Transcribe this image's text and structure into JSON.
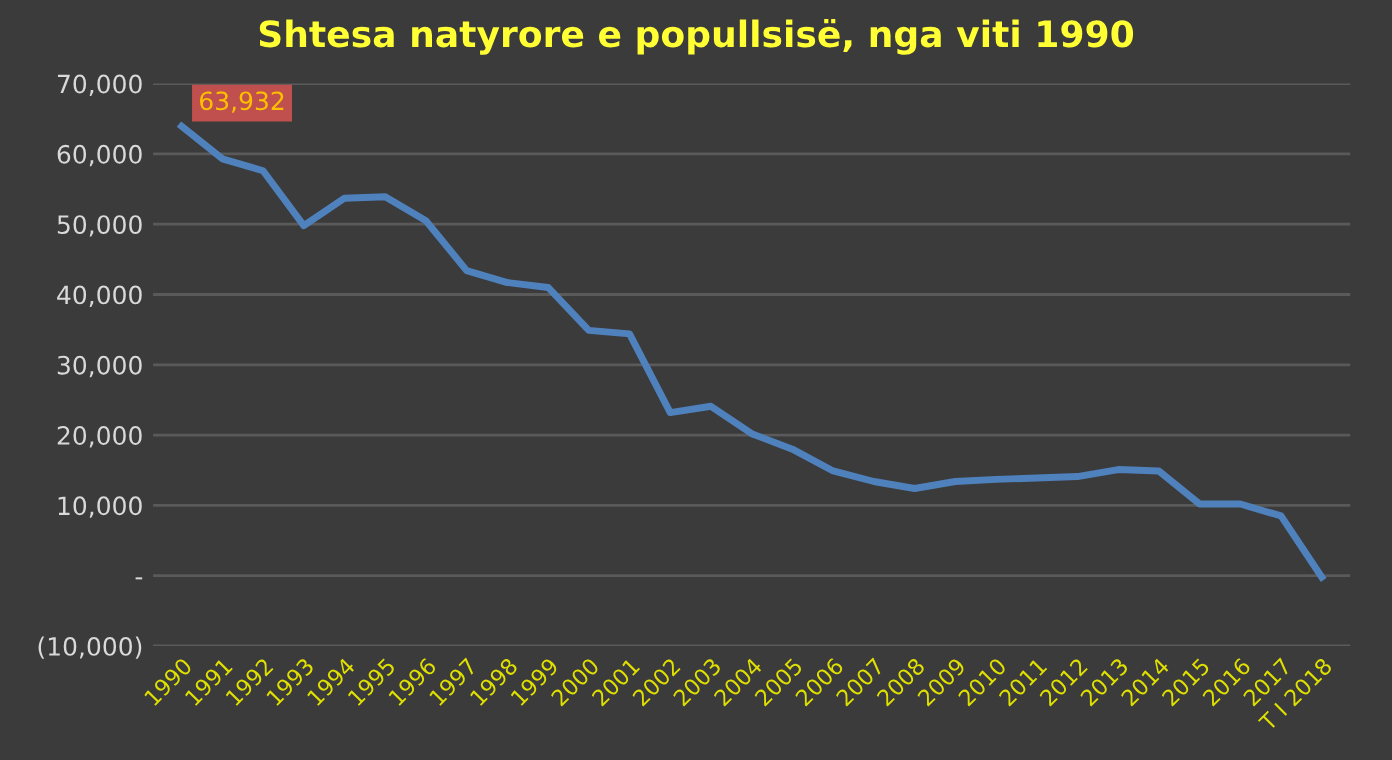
{
  "chart_data": {
    "type": "line",
    "title": "Shtesa natyrore e popullsisë, nga viti 1990",
    "categories": [
      "1990",
      "1991",
      "1992",
      "1993",
      "1994",
      "1995",
      "1996",
      "1997",
      "1998",
      "1999",
      "2000",
      "2001",
      "2002",
      "2003",
      "2004",
      "2005",
      "2006",
      "2007",
      "2008",
      "2009",
      "2010",
      "2011",
      "2012",
      "2013",
      "2014",
      "2015",
      "2016",
      "2017",
      "T I 2018"
    ],
    "series": [
      {
        "color": "#4f81bd",
        "values": [
          63932,
          59300,
          57600,
          49800,
          53700,
          53900,
          50500,
          43400,
          41700,
          41000,
          34900,
          34400,
          23200,
          24100,
          20200,
          18000,
          14900,
          13400,
          12400,
          13400,
          13700,
          13900,
          14100,
          15100,
          14900,
          10200,
          10200,
          8500,
          -200
        ],
        "value_labels": [
          "63,932",
          null,
          null,
          null,
          null,
          null,
          null,
          null,
          null,
          null,
          null,
          null,
          null,
          null,
          null,
          null,
          null,
          null,
          null,
          null,
          null,
          null,
          null,
          null,
          null,
          null,
          null,
          null,
          null
        ]
      }
    ],
    "ylim": [
      -10000,
      70000
    ],
    "yticks": [
      {
        "value": -10000,
        "label": "(10,000)"
      },
      {
        "value": 0,
        "label": "-"
      },
      {
        "value": 10000,
        "label": "10,000"
      },
      {
        "value": 20000,
        "label": "20,000"
      },
      {
        "value": 30000,
        "label": "30,000"
      },
      {
        "value": 40000,
        "label": "40,000"
      },
      {
        "value": 50000,
        "label": "50,000"
      },
      {
        "value": 60000,
        "label": "60,000"
      },
      {
        "value": 70000,
        "label": "70,000"
      }
    ],
    "grid": "y",
    "marker": "none",
    "line_style": "solid"
  }
}
